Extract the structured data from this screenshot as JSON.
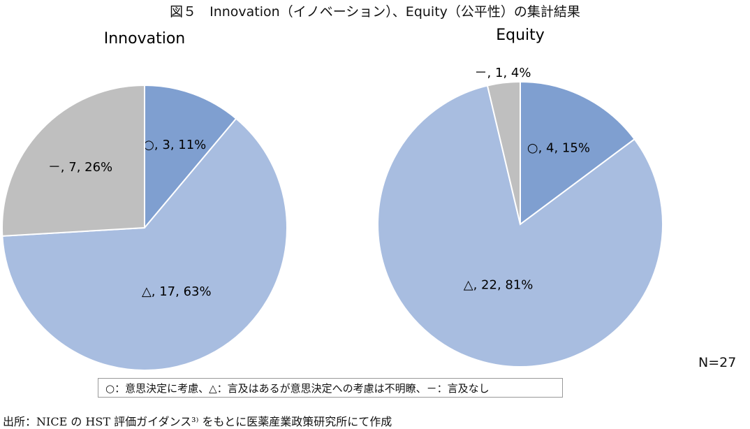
{
  "title": "図５　Innovation（イノベーション）、Equity（公平性）の集計結果",
  "legend": "○：意思決定に考慮、△：言及はあるが意思決定への考慮は不明瞭、－：言及なし",
  "source": "出所：NICE の HST 評価ガイダンス³⁾ をもとに医薬産業政策研究所にて作成",
  "n_label": "N=27",
  "colors": {
    "circle": "#7f9fd0",
    "triangle": "#a8bde0",
    "dash": "#bfbfbf"
  },
  "chart_data": [
    {
      "type": "pie",
      "title": "Innovation",
      "slices": [
        {
          "name": "○",
          "value": 3,
          "percent": 11,
          "label": "○, 3, 11%"
        },
        {
          "name": "△",
          "value": 17,
          "percent": 63,
          "label": "△, 17, 63%"
        },
        {
          "name": "－",
          "value": 7,
          "percent": 26,
          "label": "－, 7, 26%"
        }
      ]
    },
    {
      "type": "pie",
      "title": "Equity",
      "slices": [
        {
          "name": "○",
          "value": 4,
          "percent": 15,
          "label": "○, 4, 15%"
        },
        {
          "name": "△",
          "value": 22,
          "percent": 81,
          "label": "△, 22, 81%"
        },
        {
          "name": "－",
          "value": 1,
          "percent": 4,
          "label": "－, 1, 4%"
        }
      ]
    }
  ]
}
